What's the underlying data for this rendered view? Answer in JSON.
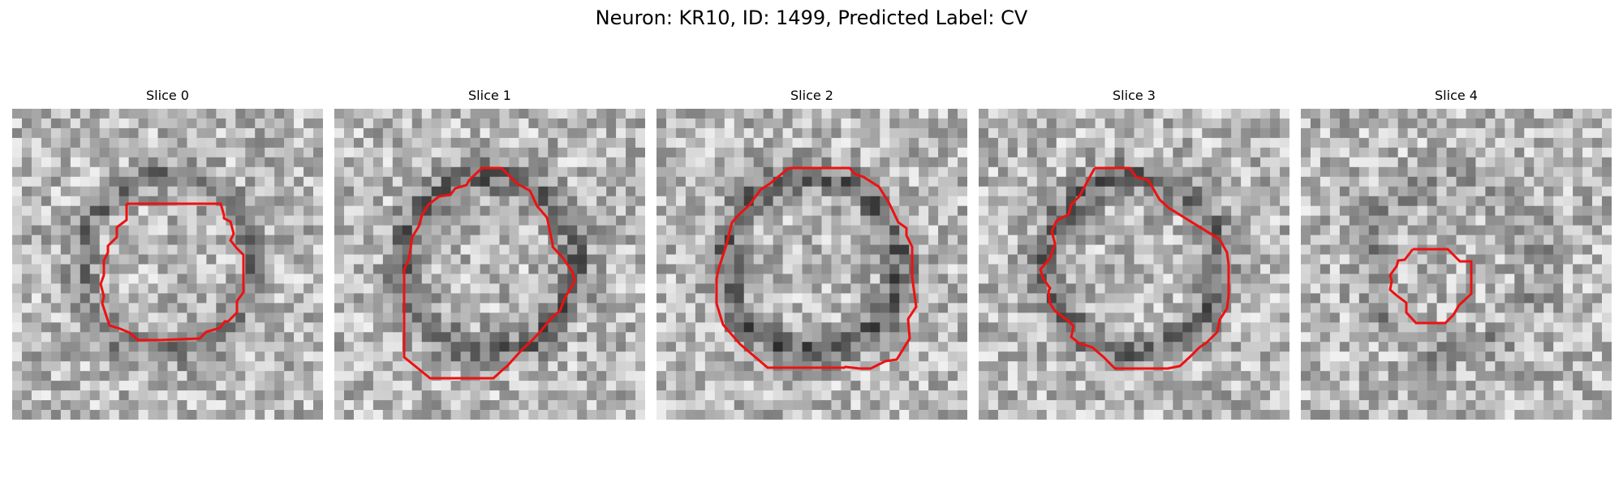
{
  "title": "Neuron: KR10, ID: 1499, Predicted Label: CV",
  "outline_color": "#ee1111",
  "slices": [
    {
      "label": "Slice 0",
      "seed": 11,
      "ring": 0.42
    },
    {
      "label": "Slice 1",
      "seed": 23,
      "ring": 0.55
    },
    {
      "label": "Slice 2",
      "seed": 37,
      "ring": 0.6
    },
    {
      "label": "Slice 3",
      "seed": 51,
      "ring": 0.55
    },
    {
      "label": "Slice 4",
      "seed": 67,
      "ring": 0.25
    }
  ]
}
